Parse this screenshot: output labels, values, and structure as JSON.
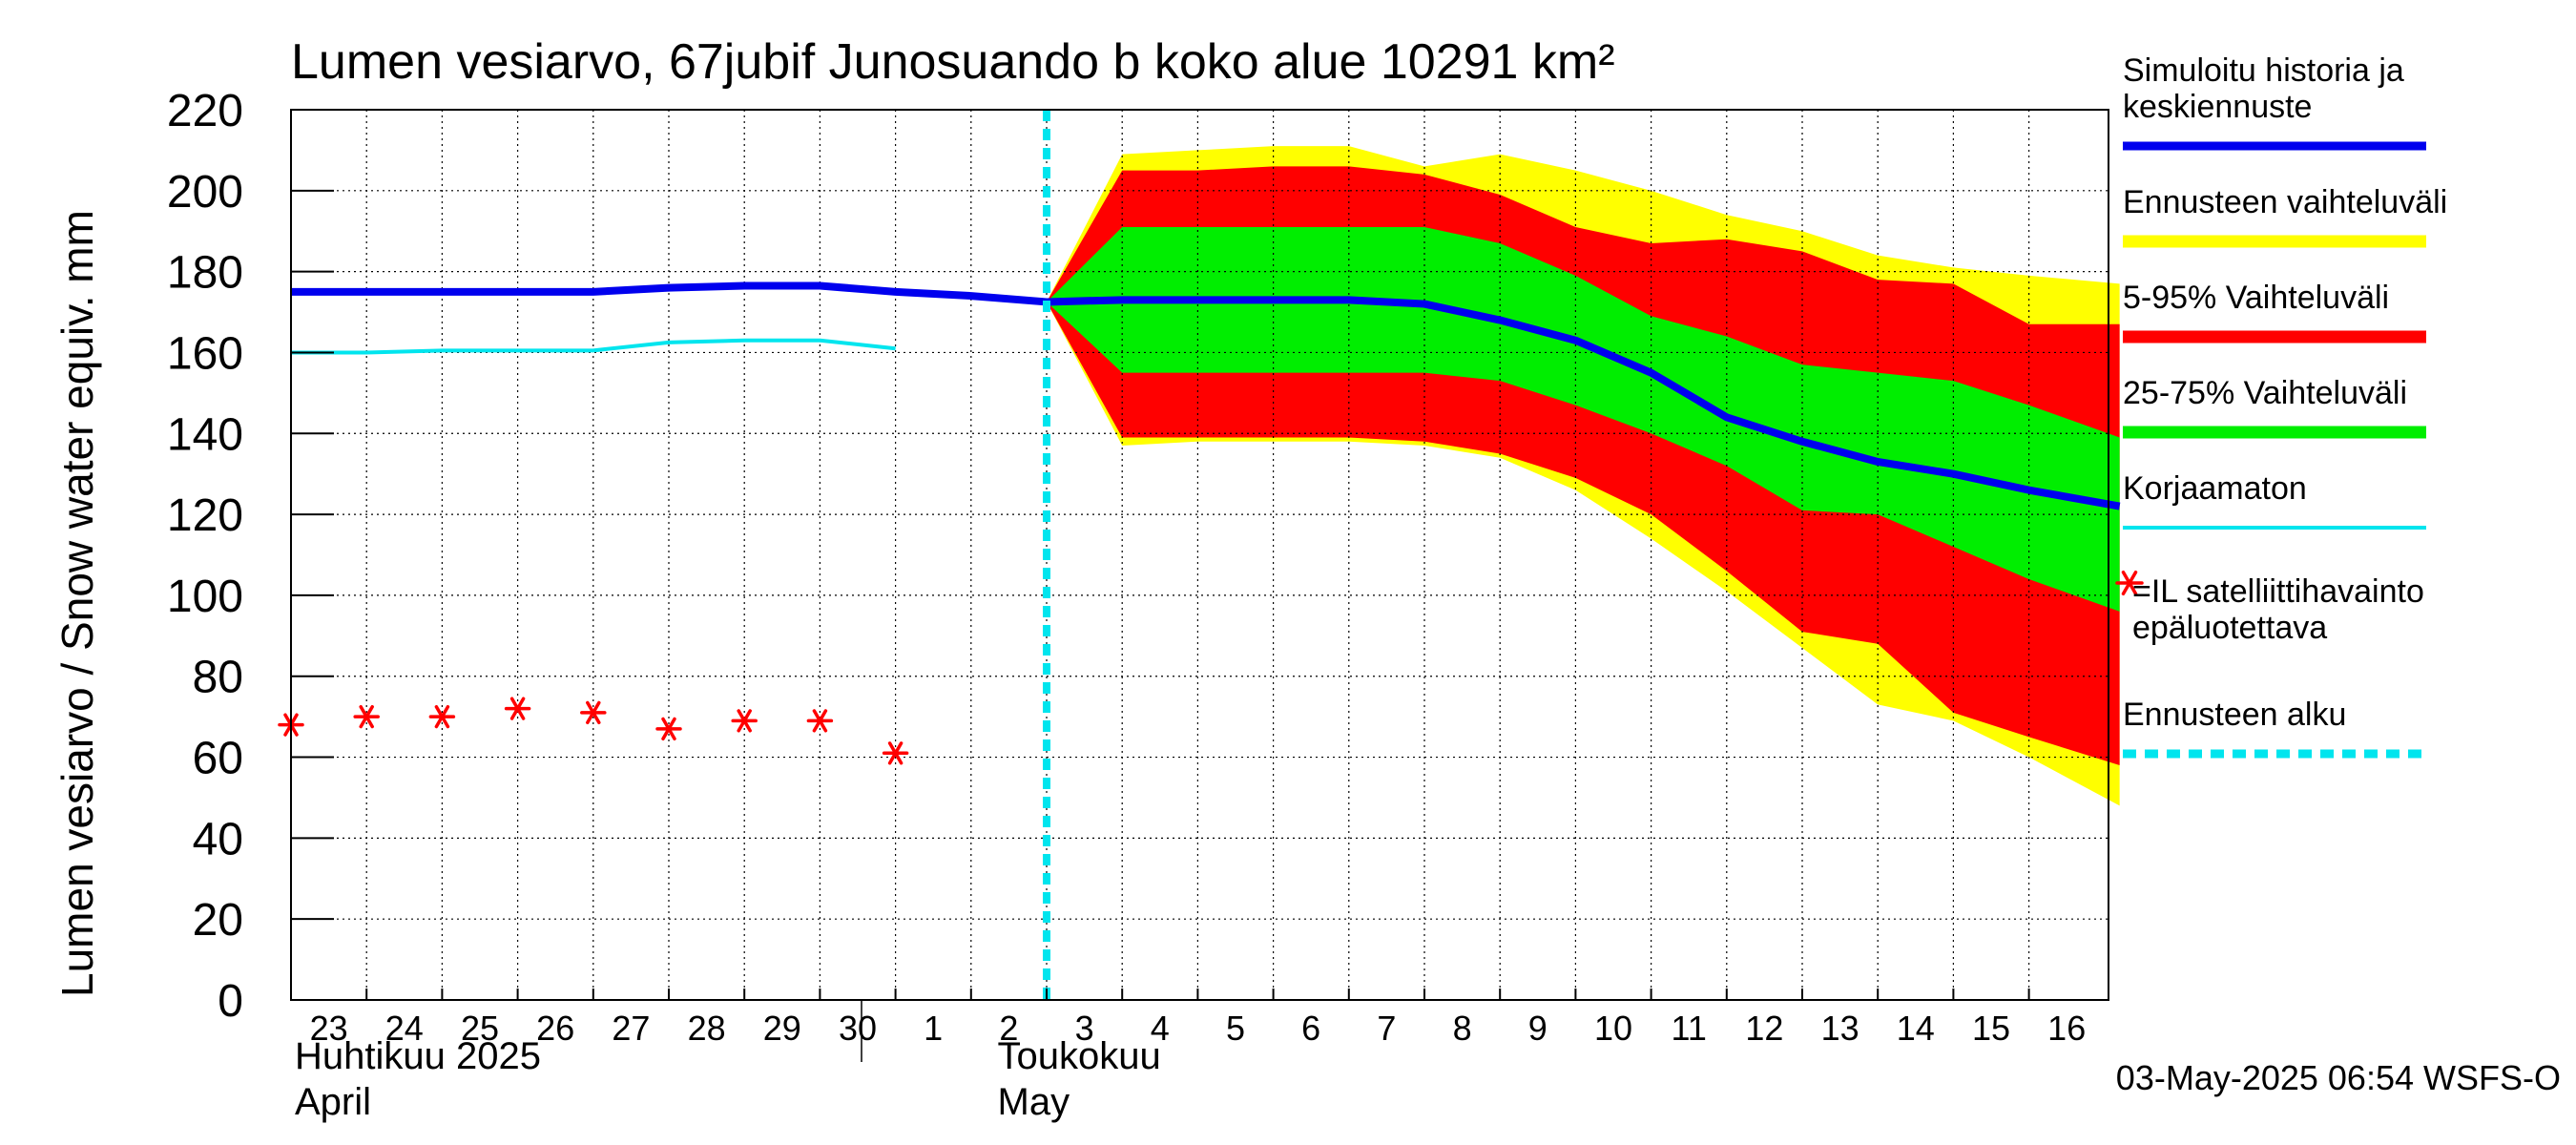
{
  "chart_data": {
    "type": "area",
    "title": "Lumen vesiarvo, 67jubif Junosuando b koko alue 10291 km²",
    "ylabel": "Lumen vesiarvo / Snow water equiv.    mm",
    "ylim": [
      0,
      220
    ],
    "yticks": [
      0,
      20,
      40,
      60,
      80,
      100,
      120,
      140,
      160,
      180,
      200,
      220
    ],
    "x_tick_labels": [
      "23",
      "24",
      "25",
      "26",
      "27",
      "28",
      "29",
      "30",
      "1",
      "2",
      "3",
      "4",
      "5",
      "6",
      "7",
      "8",
      "9",
      "10",
      "11",
      "12",
      "13",
      "14",
      "15",
      "16"
    ],
    "x_tick_days": [
      0,
      1,
      2,
      3,
      4,
      5,
      6,
      7,
      8,
      9,
      10,
      11,
      12,
      13,
      14,
      15,
      16,
      17,
      18,
      19,
      20,
      21,
      22,
      23
    ],
    "xlim_days": [
      0,
      24.2
    ],
    "month_labels": [
      {
        "fi": "Huhtikuu  2025",
        "en": "April",
        "day": 0
      },
      {
        "fi": "Toukokuu",
        "en": "May",
        "day": 9.3
      }
    ],
    "month_separator_day": 7.5,
    "forecast_start_day": 10,
    "grid": true,
    "legend_position": "right",
    "series": [
      {
        "name": "Simuloitu historia ja keskiennuste",
        "kind": "line",
        "color": "#0000ee",
        "x": [
          0,
          1,
          2,
          3,
          4,
          5,
          6,
          7,
          8,
          9,
          10,
          11,
          12,
          13,
          14,
          15,
          16,
          17,
          18,
          19,
          20,
          21,
          22,
          23,
          24.2
        ],
        "y": [
          175,
          175,
          175,
          175,
          175,
          176,
          176.5,
          176.5,
          175,
          174,
          172.5,
          173,
          173,
          173,
          173,
          172,
          168,
          163,
          155,
          144,
          138,
          133,
          130,
          126,
          122
        ]
      },
      {
        "name": "Ennusteen vaihteluväli",
        "kind": "band",
        "color": "#ffff00",
        "x": [
          10,
          11,
          12,
          13,
          14,
          15,
          16,
          17,
          18,
          19,
          20,
          21,
          22,
          23,
          24.2
        ],
        "upper": [
          172.5,
          209,
          210,
          211,
          211,
          206,
          209,
          205,
          200,
          194,
          190,
          184,
          181,
          179,
          177
        ],
        "lower": [
          172.5,
          137,
          138,
          138,
          138,
          137,
          134,
          126,
          114,
          101,
          87,
          73,
          69,
          60,
          48
        ]
      },
      {
        "name": "5-95% Vaihteluväli",
        "kind": "band",
        "color": "#ff0000",
        "x": [
          10,
          11,
          12,
          13,
          14,
          15,
          16,
          17,
          18,
          19,
          20,
          21,
          22,
          23,
          24.2
        ],
        "upper": [
          172.5,
          205,
          205,
          206,
          206,
          204,
          199,
          191,
          187,
          188,
          185,
          178,
          177,
          167,
          167
        ],
        "lower": [
          172.5,
          139,
          139,
          139,
          139,
          138,
          135,
          129,
          120,
          106,
          91,
          88,
          71,
          65,
          58
        ]
      },
      {
        "name": "25-75% Vaihteluväli",
        "kind": "band",
        "color": "#00ee00",
        "x": [
          10,
          11,
          12,
          13,
          14,
          15,
          16,
          17,
          18,
          19,
          20,
          21,
          22,
          23,
          24.2
        ],
        "upper": [
          172.5,
          191,
          191,
          191,
          191,
          191,
          187,
          179,
          169,
          164,
          157,
          155,
          153,
          147,
          139
        ],
        "lower": [
          172.5,
          155,
          155,
          155,
          155,
          155,
          153,
          147,
          140,
          132,
          121,
          120,
          112,
          104,
          96
        ]
      },
      {
        "name": "Korjaamaton",
        "kind": "line",
        "color": "#00e5ee",
        "x": [
          0,
          1,
          2,
          3,
          4,
          5,
          6,
          7,
          8
        ],
        "y": [
          160,
          160,
          160.5,
          160.5,
          160.5,
          162.5,
          163,
          163,
          161
        ]
      },
      {
        "name": "=IL satelliittihavainto epäluotettava",
        "kind": "scatter",
        "color": "#ff0000",
        "marker": "*",
        "x": [
          0,
          1,
          2,
          3,
          4,
          5,
          6,
          7,
          8
        ],
        "y": [
          68,
          70,
          70,
          72,
          71,
          67,
          69,
          69,
          61
        ]
      },
      {
        "name": "Ennusteen alku",
        "kind": "vline",
        "color": "#00e5ee",
        "x": 10
      }
    ]
  },
  "legend": {
    "items": [
      {
        "key": "sim",
        "text_lines": [
          "Simuloitu historia ja",
          "keskiennuste"
        ],
        "swatch": "line",
        "color": "#0000ee"
      },
      {
        "key": "range",
        "text_lines": [
          "Ennusteen vaihteluväli"
        ],
        "swatch": "thick",
        "color": "#ffff00"
      },
      {
        "key": "p595",
        "text_lines": [
          "5-95% Vaihteluväli"
        ],
        "swatch": "thick",
        "color": "#ff0000"
      },
      {
        "key": "p2575",
        "text_lines": [
          "25-75% Vaihteluväli"
        ],
        "swatch": "thick",
        "color": "#00ee00"
      },
      {
        "key": "raw",
        "text_lines": [
          "Korjaamaton"
        ],
        "swatch": "thin",
        "color": "#00e5ee"
      },
      {
        "key": "sat",
        "text_lines": [
          "=IL satelliittihavainto",
          "epäluotettava"
        ],
        "swatch": "star",
        "color": "#ff0000"
      },
      {
        "key": "start",
        "text_lines": [
          "Ennusteen alku"
        ],
        "swatch": "dashed",
        "color": "#00e5ee"
      }
    ]
  },
  "footer": {
    "timestamp": "03-May-2025 06:54 WSFS-O"
  }
}
